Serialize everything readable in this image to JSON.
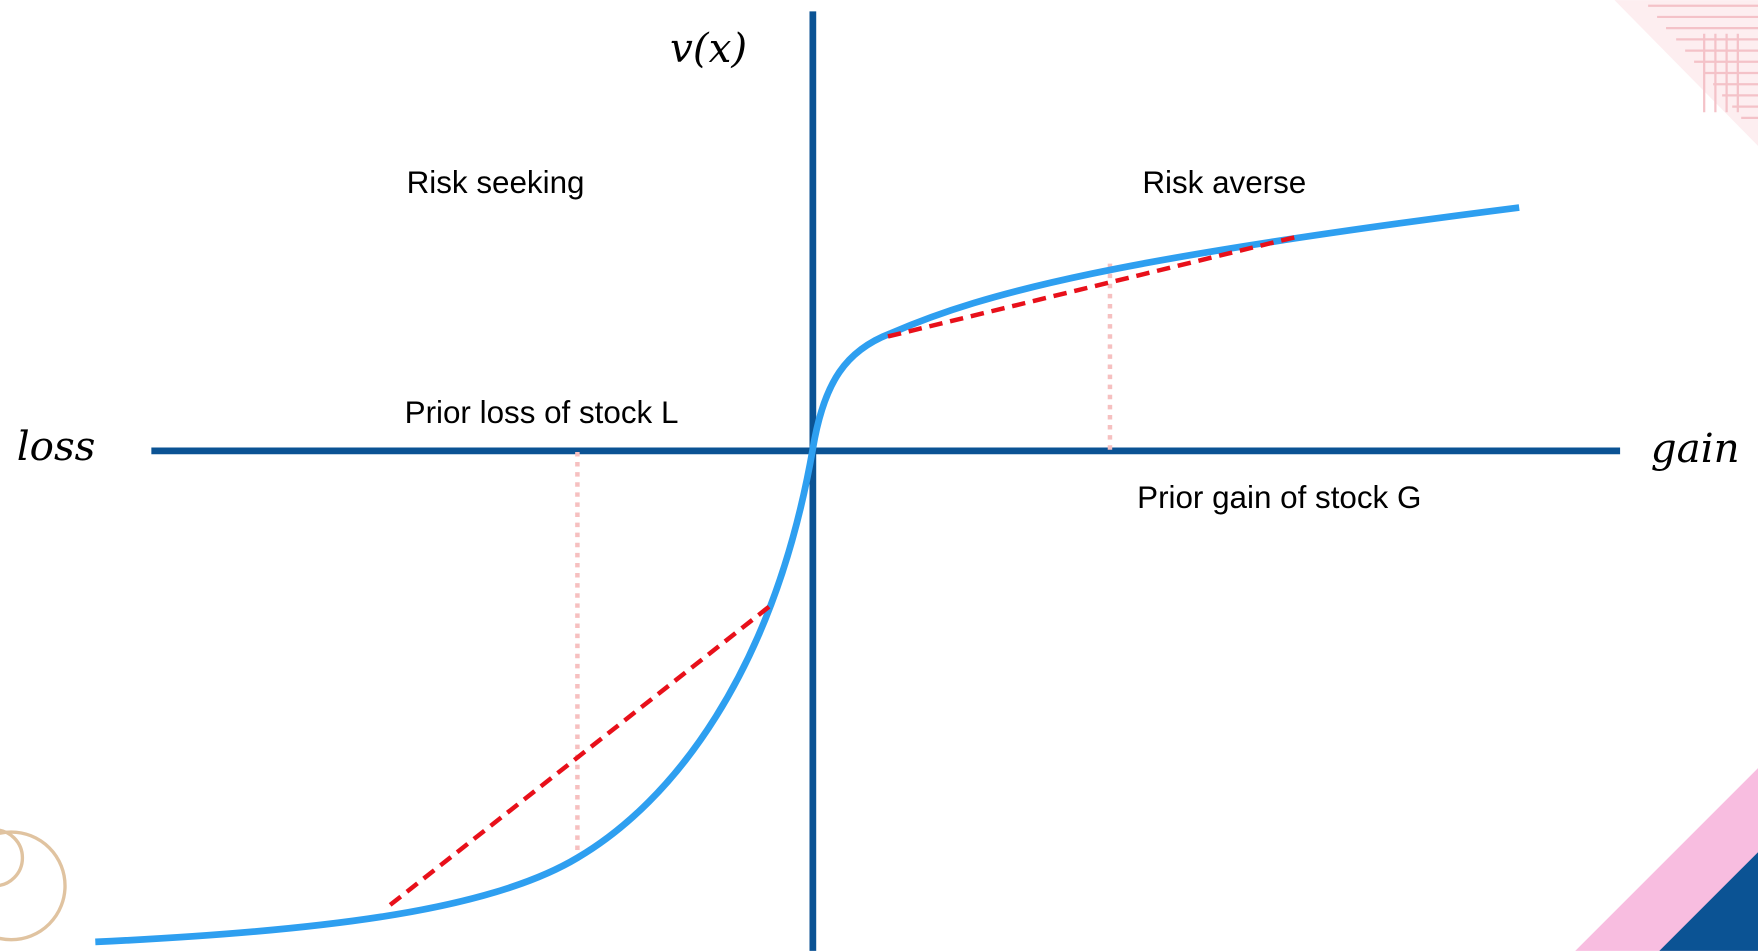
{
  "axes": {
    "y_label": "v(x)",
    "x_negative_label": "loss",
    "x_positive_label": "gain"
  },
  "regions": {
    "left": "Risk seeking",
    "right": "Risk averse"
  },
  "annotations": {
    "loss": "Prior loss of stock L",
    "gain": "Prior gain of stock G"
  }
}
